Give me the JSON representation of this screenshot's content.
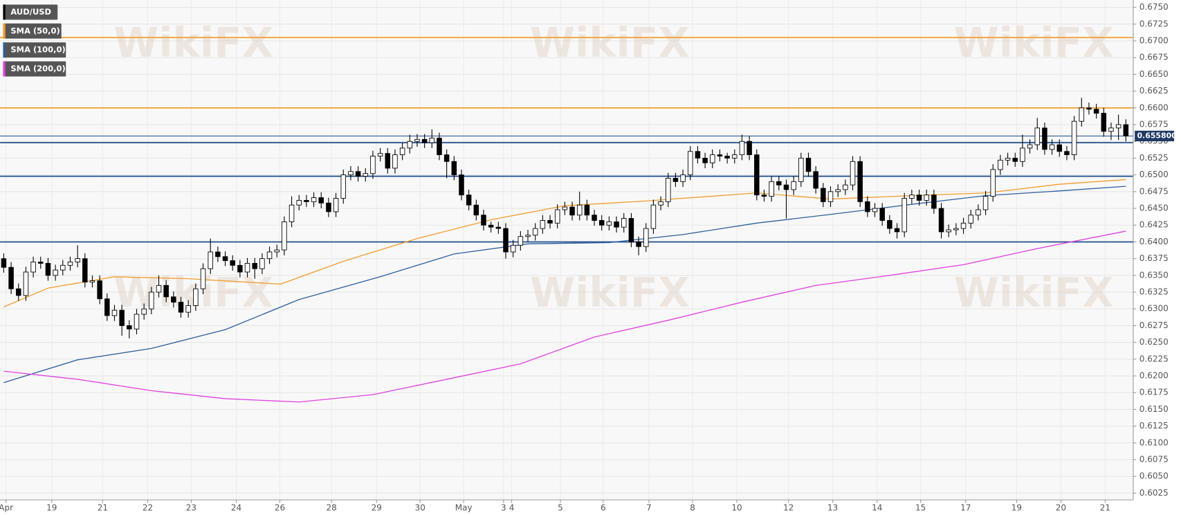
{
  "chart_data": {
    "type": "candlestick",
    "watermark": "WikiFX",
    "ylim": [
      0.6015,
      0.6761
    ],
    "yticks": [
      {
        "value": 0.6025,
        "label": "0.6025"
      },
      {
        "value": 0.605,
        "label": "0.6050"
      },
      {
        "value": 0.6075,
        "label": "0.6075"
      },
      {
        "value": 0.61,
        "label": "0.6100"
      },
      {
        "value": 0.6125,
        "label": "0.6125"
      },
      {
        "value": 0.615,
        "label": "0.6150"
      },
      {
        "value": 0.6175,
        "label": "0.6175"
      },
      {
        "value": 0.62,
        "label": "0.6200"
      },
      {
        "value": 0.6225,
        "label": "0.6225"
      },
      {
        "value": 0.625,
        "label": "0.6250"
      },
      {
        "value": 0.6275,
        "label": "0.6275"
      },
      {
        "value": 0.63,
        "label": "0.6300"
      },
      {
        "value": 0.6325,
        "label": "0.6325"
      },
      {
        "value": 0.635,
        "label": "0.6350"
      },
      {
        "value": 0.6375,
        "label": "0.6375"
      },
      {
        "value": 0.64,
        "label": "0.6400"
      },
      {
        "value": 0.6425,
        "label": "0.6425"
      },
      {
        "value": 0.645,
        "label": "0.6450"
      },
      {
        "value": 0.6475,
        "label": "0.6475"
      },
      {
        "value": 0.65,
        "label": "0.6500"
      },
      {
        "value": 0.6525,
        "label": "0.6525"
      },
      {
        "value": 0.655,
        "label": "0.6550"
      },
      {
        "value": 0.6575,
        "label": "0.6575"
      },
      {
        "value": 0.66,
        "label": "0.6600"
      },
      {
        "value": 0.6625,
        "label": "0.6625"
      },
      {
        "value": 0.665,
        "label": "0.6650"
      },
      {
        "value": 0.6675,
        "label": "0.6675"
      },
      {
        "value": 0.67,
        "label": "0.6700"
      },
      {
        "value": 0.6725,
        "label": "0.6725"
      },
      {
        "value": 0.675,
        "label": "0.6750"
      }
    ],
    "xlim": [
      -0.5,
      153
    ],
    "xticks": [
      {
        "value": 0.3,
        "label": "Apr"
      },
      {
        "value": 6.5,
        "label": "19"
      },
      {
        "value": 13.4,
        "label": "21"
      },
      {
        "value": 19.5,
        "label": "22"
      },
      {
        "value": 25.4,
        "label": "23"
      },
      {
        "value": 31.5,
        "label": "24"
      },
      {
        "value": 37.4,
        "label": "26"
      },
      {
        "value": 44.4,
        "label": "28"
      },
      {
        "value": 50.5,
        "label": "29"
      },
      {
        "value": 56.4,
        "label": "30"
      },
      {
        "value": 62.3,
        "label": "May"
      },
      {
        "value": 67.7,
        "label": "3"
      },
      {
        "value": 68.8,
        "label": "4"
      },
      {
        "value": 75.4,
        "label": "5"
      },
      {
        "value": 81.2,
        "label": "6"
      },
      {
        "value": 87.4,
        "label": "7"
      },
      {
        "value": 93.3,
        "label": "8"
      },
      {
        "value": 99.3,
        "label": "10"
      },
      {
        "value": 106.3,
        "label": "12"
      },
      {
        "value": 112.3,
        "label": "13"
      },
      {
        "value": 118.3,
        "label": "14"
      },
      {
        "value": 124.2,
        "label": "15"
      },
      {
        "value": 130.3,
        "label": "17"
      },
      {
        "value": 137.2,
        "label": "19"
      },
      {
        "value": 143.2,
        "label": "20"
      },
      {
        "value": 149.2,
        "label": "21"
      }
    ],
    "grid": true,
    "candles": {
      "name": "AUD/USD",
      "color": "#000000",
      "open": [
        0.6375,
        0.6362,
        0.633,
        0.632,
        0.6355,
        0.637,
        0.6368,
        0.635,
        0.6358,
        0.6365,
        0.637,
        0.6375,
        0.634,
        0.6342,
        0.6315,
        0.629,
        0.6298,
        0.6275,
        0.627,
        0.6292,
        0.63,
        0.6325,
        0.6335,
        0.6318,
        0.631,
        0.6295,
        0.6305,
        0.633,
        0.636,
        0.6385,
        0.6378,
        0.6372,
        0.6365,
        0.6355,
        0.6368,
        0.636,
        0.6375,
        0.6385,
        0.6388,
        0.643,
        0.6455,
        0.6462,
        0.646,
        0.6466,
        0.6458,
        0.6445,
        0.6465,
        0.65,
        0.6505,
        0.6498,
        0.6502,
        0.6528,
        0.6532,
        0.651,
        0.653,
        0.654,
        0.655,
        0.6553,
        0.6548,
        0.6555,
        0.653,
        0.652,
        0.65,
        0.647,
        0.6455,
        0.644,
        0.6425,
        0.6422,
        0.642,
        0.6385,
        0.6395,
        0.6408,
        0.641,
        0.642,
        0.6432,
        0.6428,
        0.6448,
        0.6452,
        0.644,
        0.6455,
        0.644,
        0.6432,
        0.6425,
        0.643,
        0.6422,
        0.6435,
        0.64,
        0.6393,
        0.642,
        0.6455,
        0.646,
        0.6495,
        0.649,
        0.65,
        0.6535,
        0.6525,
        0.6518,
        0.653,
        0.6528,
        0.6525,
        0.653,
        0.655,
        0.653,
        0.647,
        0.6468,
        0.649,
        0.6485,
        0.6478,
        0.649,
        0.6525,
        0.6505,
        0.648,
        0.646,
        0.6475,
        0.6478,
        0.6485,
        0.652,
        0.646,
        0.6445,
        0.645,
        0.6432,
        0.642,
        0.6415,
        0.6465,
        0.647,
        0.6462,
        0.647,
        0.645,
        0.6415,
        0.6418,
        0.642,
        0.6428,
        0.644,
        0.6448,
        0.6468,
        0.6508,
        0.6522,
        0.6525,
        0.652,
        0.654,
        0.6545,
        0.657,
        0.6538,
        0.6545,
        0.6535,
        0.653,
        0.658,
        0.66,
        0.6598,
        0.6592,
        0.6565,
        0.657,
        0.6575
      ],
      "high": [
        0.6383,
        0.637,
        0.6338,
        0.6363,
        0.6378,
        0.6378,
        0.6376,
        0.6366,
        0.6373,
        0.6378,
        0.6395,
        0.6383,
        0.635,
        0.635,
        0.6323,
        0.6306,
        0.6306,
        0.6283,
        0.63,
        0.6308,
        0.6333,
        0.635,
        0.6343,
        0.6326,
        0.6318,
        0.6313,
        0.6338,
        0.6368,
        0.6405,
        0.6393,
        0.6386,
        0.638,
        0.6373,
        0.6376,
        0.6376,
        0.6383,
        0.6393,
        0.6396,
        0.6438,
        0.6468,
        0.647,
        0.647,
        0.6474,
        0.6474,
        0.6466,
        0.6473,
        0.6508,
        0.6513,
        0.6513,
        0.651,
        0.6536,
        0.654,
        0.654,
        0.6538,
        0.6548,
        0.656,
        0.6561,
        0.6561,
        0.6568,
        0.6563,
        0.6538,
        0.6528,
        0.6508,
        0.6478,
        0.6463,
        0.6448,
        0.643,
        0.643,
        0.6428,
        0.6403,
        0.6416,
        0.6418,
        0.6428,
        0.644,
        0.644,
        0.6456,
        0.646,
        0.646,
        0.6475,
        0.6463,
        0.6448,
        0.644,
        0.6438,
        0.6438,
        0.6443,
        0.6443,
        0.6408,
        0.6428,
        0.6463,
        0.6468,
        0.6503,
        0.6503,
        0.6508,
        0.6543,
        0.6543,
        0.6533,
        0.6538,
        0.6538,
        0.6533,
        0.6538,
        0.656,
        0.6558,
        0.6538,
        0.6478,
        0.6498,
        0.6498,
        0.6493,
        0.6498,
        0.6533,
        0.6533,
        0.6513,
        0.6488,
        0.6483,
        0.6486,
        0.6493,
        0.6528,
        0.6528,
        0.6468,
        0.6458,
        0.6458,
        0.644,
        0.6428,
        0.6473,
        0.6478,
        0.6478,
        0.6478,
        0.6478,
        0.6458,
        0.6426,
        0.6428,
        0.6436,
        0.6448,
        0.6456,
        0.6476,
        0.6516,
        0.653,
        0.6533,
        0.6533,
        0.656,
        0.6553,
        0.6585,
        0.6578,
        0.6553,
        0.6553,
        0.6543,
        0.6588,
        0.6615,
        0.6608,
        0.6606,
        0.66,
        0.6578,
        0.659,
        0.6583
      ],
      "low": [
        0.6354,
        0.6322,
        0.6312,
        0.6312,
        0.6347,
        0.636,
        0.6342,
        0.6342,
        0.635,
        0.6357,
        0.6362,
        0.6332,
        0.6332,
        0.6307,
        0.6282,
        0.6282,
        0.626,
        0.6256,
        0.6262,
        0.6284,
        0.6292,
        0.6317,
        0.631,
        0.6302,
        0.6287,
        0.6287,
        0.6297,
        0.6322,
        0.6352,
        0.637,
        0.6364,
        0.6357,
        0.6347,
        0.6347,
        0.6345,
        0.6352,
        0.6367,
        0.6377,
        0.638,
        0.6422,
        0.6447,
        0.6452,
        0.6452,
        0.645,
        0.6437,
        0.6437,
        0.6457,
        0.6492,
        0.649,
        0.649,
        0.6494,
        0.652,
        0.6502,
        0.6502,
        0.6522,
        0.6532,
        0.6542,
        0.654,
        0.654,
        0.6522,
        0.6495,
        0.6492,
        0.6462,
        0.6447,
        0.6432,
        0.6417,
        0.6414,
        0.6412,
        0.6375,
        0.6377,
        0.6387,
        0.64,
        0.6402,
        0.6412,
        0.642,
        0.642,
        0.644,
        0.6432,
        0.6432,
        0.6432,
        0.6424,
        0.6417,
        0.6417,
        0.6414,
        0.6414,
        0.6392,
        0.638,
        0.6385,
        0.6412,
        0.6447,
        0.6452,
        0.6482,
        0.6482,
        0.6492,
        0.6517,
        0.651,
        0.651,
        0.652,
        0.6517,
        0.6517,
        0.6522,
        0.6522,
        0.6462,
        0.646,
        0.646,
        0.6477,
        0.6435,
        0.647,
        0.6482,
        0.6497,
        0.6472,
        0.6452,
        0.6452,
        0.6467,
        0.647,
        0.6477,
        0.6452,
        0.6437,
        0.6437,
        0.6424,
        0.6412,
        0.6405,
        0.6407,
        0.6457,
        0.6454,
        0.6454,
        0.6442,
        0.6405,
        0.6407,
        0.641,
        0.6412,
        0.642,
        0.6432,
        0.644,
        0.646,
        0.65,
        0.6514,
        0.6512,
        0.6512,
        0.6532,
        0.6537,
        0.653,
        0.653,
        0.6527,
        0.6522,
        0.6522,
        0.6572,
        0.659,
        0.6584,
        0.6557,
        0.6552,
        0.6552,
        0.655
      ],
      "close": [
        0.6362,
        0.633,
        0.632,
        0.6355,
        0.637,
        0.6368,
        0.635,
        0.6358,
        0.6365,
        0.637,
        0.6375,
        0.634,
        0.6342,
        0.6315,
        0.629,
        0.6298,
        0.6275,
        0.627,
        0.6292,
        0.63,
        0.6325,
        0.6335,
        0.6318,
        0.631,
        0.6295,
        0.6305,
        0.633,
        0.636,
        0.6385,
        0.6378,
        0.6372,
        0.6365,
        0.6355,
        0.6368,
        0.636,
        0.6375,
        0.6385,
        0.6388,
        0.643,
        0.6455,
        0.6462,
        0.646,
        0.6466,
        0.6458,
        0.6445,
        0.6465,
        0.65,
        0.6505,
        0.6498,
        0.6502,
        0.6528,
        0.6532,
        0.651,
        0.653,
        0.654,
        0.655,
        0.6553,
        0.6548,
        0.6555,
        0.653,
        0.652,
        0.65,
        0.647,
        0.6455,
        0.644,
        0.6425,
        0.6422,
        0.642,
        0.6385,
        0.6395,
        0.6408,
        0.641,
        0.642,
        0.6432,
        0.6428,
        0.6448,
        0.6452,
        0.644,
        0.6455,
        0.644,
        0.6432,
        0.6425,
        0.643,
        0.6422,
        0.6435,
        0.64,
        0.6393,
        0.642,
        0.6455,
        0.646,
        0.6495,
        0.649,
        0.65,
        0.6535,
        0.6525,
        0.6518,
        0.653,
        0.6528,
        0.6525,
        0.653,
        0.655,
        0.653,
        0.647,
        0.6468,
        0.649,
        0.6485,
        0.6478,
        0.649,
        0.6525,
        0.6505,
        0.648,
        0.646,
        0.6475,
        0.6478,
        0.6485,
        0.652,
        0.646,
        0.6445,
        0.645,
        0.6432,
        0.642,
        0.6415,
        0.6465,
        0.647,
        0.6462,
        0.647,
        0.645,
        0.6415,
        0.6418,
        0.642,
        0.6428,
        0.644,
        0.6448,
        0.6468,
        0.6508,
        0.6522,
        0.6525,
        0.652,
        0.654,
        0.6545,
        0.657,
        0.6538,
        0.6545,
        0.6535,
        0.653,
        0.658,
        0.66,
        0.6598,
        0.6592,
        0.6565,
        0.657,
        0.6575,
        0.6558
      ]
    },
    "series": [
      {
        "name": "SMA (50,0)",
        "color": "#f39c2b",
        "x": [
          0,
          6,
          15,
          25,
          37.5,
          46,
          56,
          66,
          76,
          87,
          102,
          112,
          123,
          133,
          143,
          152
        ],
        "values": [
          0.6303,
          0.6331,
          0.6348,
          0.6345,
          0.6337,
          0.6371,
          0.6405,
          0.6433,
          0.6454,
          0.6461,
          0.6473,
          0.6464,
          0.6469,
          0.6473,
          0.6486,
          0.6493
        ]
      },
      {
        "name": "SMA (100,0)",
        "color": "#2c5f9e",
        "x": [
          0,
          10,
          20,
          30,
          40,
          51,
          61,
          71,
          82,
          92,
          102,
          112,
          123,
          133,
          143,
          152
        ],
        "values": [
          0.619,
          0.6224,
          0.6241,
          0.6269,
          0.6314,
          0.6348,
          0.6382,
          0.6397,
          0.6399,
          0.6411,
          0.6428,
          0.6441,
          0.6456,
          0.6469,
          0.6476,
          0.6483
        ]
      },
      {
        "name": "SMA (200,0)",
        "color": "#e040e0",
        "x": [
          0,
          10,
          20,
          30,
          40,
          50,
          60,
          70,
          80,
          90,
          100,
          110,
          120,
          130,
          140,
          152
        ],
        "values": [
          0.6207,
          0.6195,
          0.6178,
          0.6166,
          0.6161,
          0.6172,
          0.6195,
          0.6218,
          0.6258,
          0.6283,
          0.631,
          0.6335,
          0.635,
          0.6366,
          0.639,
          0.6416
        ]
      }
    ],
    "levels": [
      {
        "value": 0.6705,
        "color": "#f39c2b"
      },
      {
        "value": 0.66,
        "color": "#f39c2b"
      },
      {
        "value": 0.6558,
        "color": "#1f4e8c"
      },
      {
        "value": 0.6548,
        "color": "#1f4e8c"
      },
      {
        "value": 0.6498,
        "color": "#1f4e8c"
      },
      {
        "value": 0.64,
        "color": "#1f4e8c"
      }
    ],
    "last_price": {
      "value": 0.6558,
      "label": "0.655800"
    }
  }
}
